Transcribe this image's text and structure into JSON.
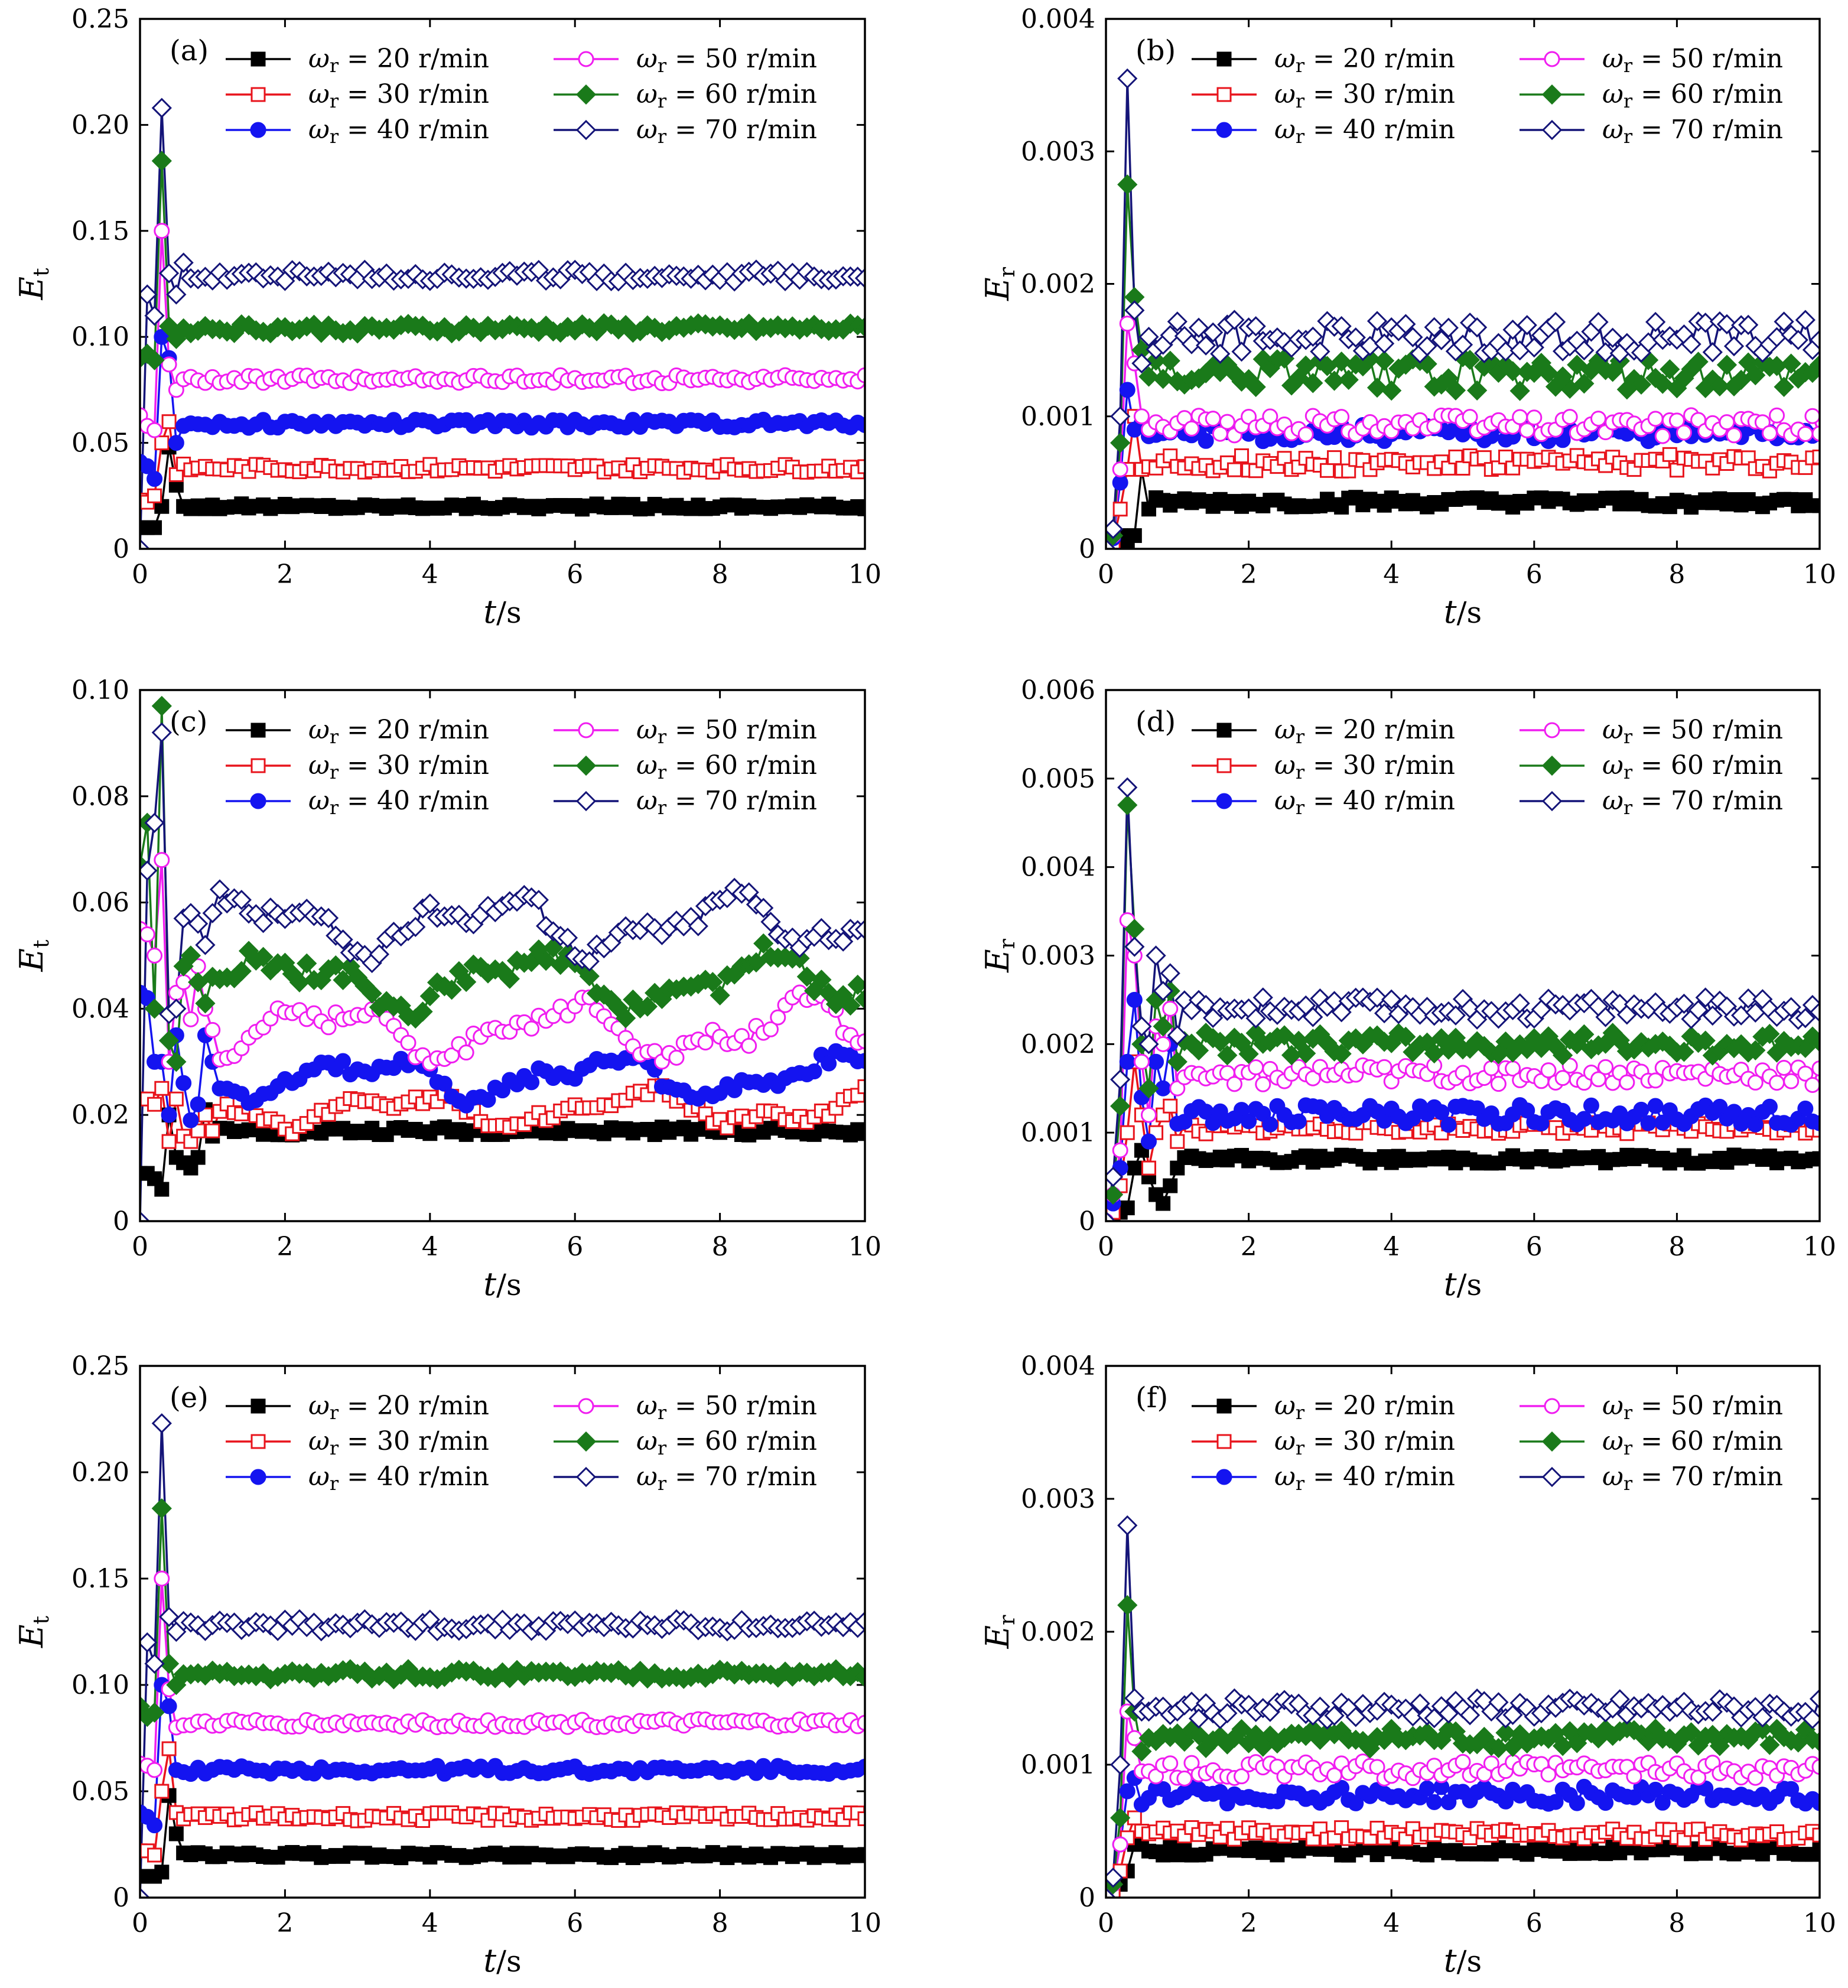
{
  "chart_data": [
    {
      "id": "a",
      "type": "line",
      "panel_label": "(a)",
      "xlabel": "t/s",
      "ylabel": "Et",
      "xlim": [
        0,
        10
      ],
      "ylim": [
        0,
        0.25
      ],
      "xticks": [
        "0",
        "2",
        "4",
        "6",
        "8",
        "10"
      ],
      "yticks": [
        "0",
        "0.05",
        "0.10",
        "0.15",
        "0.20",
        "0.25"
      ],
      "series": [
        {
          "name": "ωr = 20 r/min",
          "color": "#000000",
          "marker": "square-filled",
          "early": [
            0.01,
            0.01,
            0.01,
            0.02,
            0.048,
            0.03,
            0.02
          ],
          "base": 0.02,
          "noise": 0.0008,
          "wave": 0
        },
        {
          "name": "ωr = 30 r/min",
          "color": "#e8141c",
          "marker": "square-open",
          "early": [
            0.023,
            0.022,
            0.025,
            0.05,
            0.06,
            0.035,
            0.04
          ],
          "base": 0.038,
          "noise": 0.0012,
          "wave": 0
        },
        {
          "name": "ωr = 40 r/min",
          "color": "#1414f0",
          "marker": "circle-filled",
          "early": [
            0.041,
            0.039,
            0.033,
            0.1,
            0.09,
            0.05,
            0.058
          ],
          "base": 0.059,
          "noise": 0.0012,
          "wave": 0
        },
        {
          "name": "ωr = 50 r/min",
          "color": "#f01ef0",
          "marker": "circle-open",
          "early": [
            0.063,
            0.058,
            0.056,
            0.15,
            0.087,
            0.075,
            0.08
          ],
          "base": 0.08,
          "noise": 0.0012,
          "wave": 0
        },
        {
          "name": "ωr = 60 r/min",
          "color": "#1a7a1a",
          "marker": "diamond-filled",
          "early": [
            0.09,
            0.092,
            0.089,
            0.183,
            0.105,
            0.099,
            0.104
          ],
          "base": 0.104,
          "noise": 0.0015,
          "wave": 0
        },
        {
          "name": "ωr = 70 r/min",
          "color": "#141478",
          "marker": "diamond-open",
          "early": [
            0,
            0.12,
            0.11,
            0.208,
            0.13,
            0.12,
            0.135
          ],
          "base": 0.129,
          "noise": 0.0018,
          "wave": 0
        }
      ]
    },
    {
      "id": "b",
      "type": "line",
      "panel_label": "(b)",
      "xlabel": "t/s",
      "ylabel": "Er",
      "xlim": [
        0,
        10
      ],
      "ylim": [
        0,
        0.004
      ],
      "xticks": [
        "0",
        "2",
        "4",
        "6",
        "8",
        "10"
      ],
      "yticks": [
        "0",
        "0.001",
        "0.002",
        "0.003",
        "0.004"
      ],
      "series": [
        {
          "name": "ωr = 20 r/min",
          "color": "#000000",
          "marker": "square-filled",
          "early": [
            0,
            2e-05,
            0.0001,
            5e-05,
            0.0001,
            0.0006,
            0.0003
          ],
          "base": 0.00035,
          "noise": 2.5e-05,
          "wave": 0
        },
        {
          "name": "ωr = 30 r/min",
          "color": "#e8141c",
          "marker": "square-open",
          "early": [
            0,
            5e-05,
            0.0003,
            0.0006,
            0.001,
            0.0006,
            0.00062
          ],
          "base": 0.00065,
          "noise": 4e-05,
          "wave": 0
        },
        {
          "name": "ωr = 40 r/min",
          "color": "#1414f0",
          "marker": "circle-filled",
          "early": [
            0,
            8e-05,
            0.0005,
            0.0012,
            0.0009,
            0.00095,
            0.00085
          ],
          "base": 0.00087,
          "noise": 4e-05,
          "wave": 0
        },
        {
          "name": "ωr = 50 r/min",
          "color": "#f01ef0",
          "marker": "circle-open",
          "early": [
            0,
            0.0001,
            0.0006,
            0.0017,
            0.0014,
            0.001,
            0.0009
          ],
          "base": 0.00093,
          "noise": 5e-05,
          "wave": 0
        },
        {
          "name": "ωr = 60 r/min",
          "color": "#1a7a1a",
          "marker": "diamond-filled",
          "early": [
            0,
            0.0001,
            0.0008,
            0.00275,
            0.0019,
            0.0015,
            0.0013
          ],
          "base": 0.00132,
          "noise": 8e-05,
          "wave": 0
        },
        {
          "name": "ωr = 70 r/min",
          "color": "#141478",
          "marker": "diamond-open",
          "early": [
            0,
            0.00015,
            0.001,
            0.00355,
            0.0018,
            0.0014,
            0.0016
          ],
          "base": 0.0016,
          "noise": 8e-05,
          "wave": 0
        }
      ]
    },
    {
      "id": "c",
      "type": "line",
      "panel_label": "(c)",
      "xlabel": "t/s",
      "ylabel": "Et",
      "xlim": [
        0,
        10
      ],
      "ylim": [
        0,
        0.1
      ],
      "xticks": [
        "0",
        "2",
        "4",
        "6",
        "8",
        "10"
      ],
      "yticks": [
        "0",
        "0.02",
        "0.04",
        "0.06",
        "0.08",
        "0.10"
      ],
      "series": [
        {
          "name": "ωr = 20 r/min",
          "color": "#000000",
          "marker": "square-filled",
          "early": [
            0.009,
            0.009,
            0.008,
            0.006,
            0.02,
            0.012,
            0.011,
            0.01,
            0.012,
            0.021,
            0.016
          ],
          "base": 0.017,
          "noise": 0.0005,
          "wave": 0
        },
        {
          "name": "ωr = 30 r/min",
          "color": "#e8141c",
          "marker": "square-open",
          "early": [
            0.023,
            0.023,
            0.022,
            0.025,
            0.015,
            0.023,
            0.016,
            0.015,
            0.017,
            0.02,
            0.017
          ],
          "base": 0.021,
          "noise": 0.0007,
          "wave": 0.0025
        },
        {
          "name": "ωr = 40 r/min",
          "color": "#1414f0",
          "marker": "circle-filled",
          "early": [
            0.043,
            0.042,
            0.03,
            0.03,
            0.02,
            0.035,
            0.026,
            0.019,
            0.022,
            0.035,
            0.03
          ],
          "base": 0.027,
          "noise": 0.0008,
          "wave": 0.003
        },
        {
          "name": "ωr = 50 r/min",
          "color": "#f01ef0",
          "marker": "circle-open",
          "early": [
            0.055,
            0.054,
            0.05,
            0.068,
            0.03,
            0.043,
            0.045,
            0.038,
            0.048,
            0.04,
            0.036
          ],
          "base": 0.036,
          "noise": 0.001,
          "wave": 0.004
        },
        {
          "name": "ωr = 60 r/min",
          "color": "#1a7a1a",
          "marker": "diamond-filled",
          "early": [
            0.067,
            0.075,
            0.04,
            0.097,
            0.034,
            0.03,
            0.048,
            0.05,
            0.045,
            0.041,
            0.046
          ],
          "base": 0.045,
          "noise": 0.0012,
          "wave": 0.004
        },
        {
          "name": "ωr = 70 r/min",
          "color": "#141478",
          "marker": "diamond-open",
          "early": [
            0,
            0.066,
            0.075,
            0.092,
            0.039,
            0.04,
            0.057,
            0.058,
            0.056,
            0.052,
            0.058
          ],
          "base": 0.056,
          "noise": 0.0012,
          "wave": 0.004
        }
      ]
    },
    {
      "id": "d",
      "type": "line",
      "panel_label": "(d)",
      "xlabel": "t/s",
      "ylabel": "Er",
      "xlim": [
        0,
        10
      ],
      "ylim": [
        0,
        0.006
      ],
      "xticks": [
        "0",
        "2",
        "4",
        "6",
        "8",
        "10"
      ],
      "yticks": [
        "0",
        "0.001",
        "0.002",
        "0.003",
        "0.004",
        "0.005",
        "0.006"
      ],
      "series": [
        {
          "name": "ωr = 20 r/min",
          "color": "#000000",
          "marker": "square-filled",
          "early": [
            0,
            5e-05,
            0.0001,
            0.00015,
            0.0006,
            0.0008,
            0.0005,
            0.0003,
            0.0002,
            0.0004,
            0.0006
          ],
          "base": 0.0007,
          "noise": 3e-05,
          "wave": 0
        },
        {
          "name": "ωr = 30 r/min",
          "color": "#e8141c",
          "marker": "square-open",
          "early": [
            0,
            0.0001,
            0.0004,
            0.001,
            0.0018,
            0.0012,
            0.0006,
            0.001,
            0.0012,
            0.0013,
            0.0009
          ],
          "base": 0.00105,
          "noise": 4e-05,
          "wave": 0
        },
        {
          "name": "ωr = 40 r/min",
          "color": "#1414f0",
          "marker": "circle-filled",
          "early": [
            0,
            0.0002,
            0.0006,
            0.0018,
            0.0025,
            0.0014,
            0.0009,
            0.0018,
            0.0015,
            0.002,
            0.0011
          ],
          "base": 0.0012,
          "noise": 7e-05,
          "wave": 0
        },
        {
          "name": "ωr = 50 r/min",
          "color": "#f01ef0",
          "marker": "circle-open",
          "early": [
            0,
            0.0003,
            0.0008,
            0.0034,
            0.003,
            0.0018,
            0.0012,
            0.0022,
            0.002,
            0.0024,
            0.0015
          ],
          "base": 0.00165,
          "noise": 7e-05,
          "wave": 0
        },
        {
          "name": "ωr = 60 r/min",
          "color": "#1a7a1a",
          "marker": "diamond-filled",
          "early": [
            0,
            0.0003,
            0.0013,
            0.0047,
            0.0033,
            0.002,
            0.0015,
            0.0025,
            0.0022,
            0.0026,
            0.0018
          ],
          "base": 0.002,
          "noise": 8e-05,
          "wave": 0
        },
        {
          "name": "ωr = 70 r/min",
          "color": "#141478",
          "marker": "diamond-open",
          "early": [
            0,
            0.0005,
            0.0016,
            0.0049,
            0.0031,
            0.0022,
            0.002,
            0.003,
            0.0026,
            0.0028,
            0.0021
          ],
          "base": 0.0024,
          "noise": 8e-05,
          "wave": 0
        }
      ]
    },
    {
      "id": "e",
      "type": "line",
      "panel_label": "(e)",
      "xlabel": "t/s",
      "ylabel": "Et",
      "xlim": [
        0,
        10
      ],
      "ylim": [
        0,
        0.25
      ],
      "xticks": [
        "0",
        "2",
        "4",
        "6",
        "8",
        "10"
      ],
      "yticks": [
        "0",
        "0.05",
        "0.10",
        "0.15",
        "0.20",
        "0.25"
      ],
      "series": [
        {
          "name": "ωr = 20 r/min",
          "color": "#000000",
          "marker": "square-filled",
          "early": [
            0.01,
            0.01,
            0.01,
            0.012,
            0.048,
            0.03,
            0.021
          ],
          "base": 0.02,
          "noise": 0.0008,
          "wave": 0
        },
        {
          "name": "ωr = 30 r/min",
          "color": "#e8141c",
          "marker": "square-open",
          "early": [
            0.022,
            0.022,
            0.02,
            0.05,
            0.07,
            0.04,
            0.037
          ],
          "base": 0.038,
          "noise": 0.0012,
          "wave": 0
        },
        {
          "name": "ωr = 40 r/min",
          "color": "#1414f0",
          "marker": "circle-filled",
          "early": [
            0.04,
            0.038,
            0.034,
            0.1,
            0.09,
            0.06,
            0.059
          ],
          "base": 0.06,
          "noise": 0.0012,
          "wave": 0
        },
        {
          "name": "ωr = 50 r/min",
          "color": "#f01ef0",
          "marker": "circle-open",
          "early": [
            0.063,
            0.062,
            0.06,
            0.15,
            0.098,
            0.08,
            0.081
          ],
          "base": 0.082,
          "noise": 0.0012,
          "wave": 0
        },
        {
          "name": "ωr = 60 r/min",
          "color": "#1a7a1a",
          "marker": "diamond-filled",
          "early": [
            0.09,
            0.085,
            0.087,
            0.183,
            0.11,
            0.1,
            0.105
          ],
          "base": 0.105,
          "noise": 0.0015,
          "wave": 0
        },
        {
          "name": "ωr = 70 r/min",
          "color": "#141478",
          "marker": "diamond-open",
          "early": [
            0,
            0.12,
            0.11,
            0.223,
            0.132,
            0.125,
            0.13
          ],
          "base": 0.128,
          "noise": 0.0018,
          "wave": 0
        }
      ]
    },
    {
      "id": "f",
      "type": "line",
      "panel_label": "(f)",
      "xlabel": "t/s",
      "ylabel": "Er",
      "xlim": [
        0,
        10
      ],
      "ylim": [
        0,
        0.004
      ],
      "xticks": [
        "0",
        "2",
        "4",
        "6",
        "8",
        "10"
      ],
      "yticks": [
        "0",
        "0.001",
        "0.002",
        "0.003",
        "0.004"
      ],
      "series": [
        {
          "name": "ωr = 20 r/min",
          "color": "#000000",
          "marker": "square-filled",
          "early": [
            0,
            2e-05,
            0.0001,
            0.0002,
            0.0004,
            0.0004,
            0.00035
          ],
          "base": 0.00035,
          "noise": 2e-05,
          "wave": 0
        },
        {
          "name": "ωr = 30 r/min",
          "color": "#e8141c",
          "marker": "square-open",
          "early": [
            0,
            5e-05,
            0.0002,
            0.00045,
            0.0006,
            0.0005,
            0.00048
          ],
          "base": 0.00048,
          "noise": 3e-05,
          "wave": 0
        },
        {
          "name": "ωr = 40 r/min",
          "color": "#1414f0",
          "marker": "circle-filled",
          "early": [
            0,
            0.0001,
            0.0004,
            0.0008,
            0.0009,
            0.0007,
            0.00075
          ],
          "base": 0.00077,
          "noise": 4e-05,
          "wave": 0
        },
        {
          "name": "ωr = 50 r/min",
          "color": "#f01ef0",
          "marker": "circle-open",
          "early": [
            0,
            0.0001,
            0.0004,
            0.0014,
            0.0012,
            0.00095,
            0.00095
          ],
          "base": 0.00096,
          "noise": 4e-05,
          "wave": 0
        },
        {
          "name": "ωr = 60 r/min",
          "color": "#1a7a1a",
          "marker": "diamond-filled",
          "early": [
            0,
            0.0001,
            0.0006,
            0.0022,
            0.0014,
            0.0011,
            0.0012
          ],
          "base": 0.0012,
          "noise": 5e-05,
          "wave": 0
        },
        {
          "name": "ωr = 70 r/min",
          "color": "#141478",
          "marker": "diamond-open",
          "early": [
            0,
            0.00015,
            0.001,
            0.0028,
            0.0015,
            0.0014,
            0.0014
          ],
          "base": 0.00142,
          "noise": 5e-05,
          "wave": 0
        }
      ]
    }
  ]
}
